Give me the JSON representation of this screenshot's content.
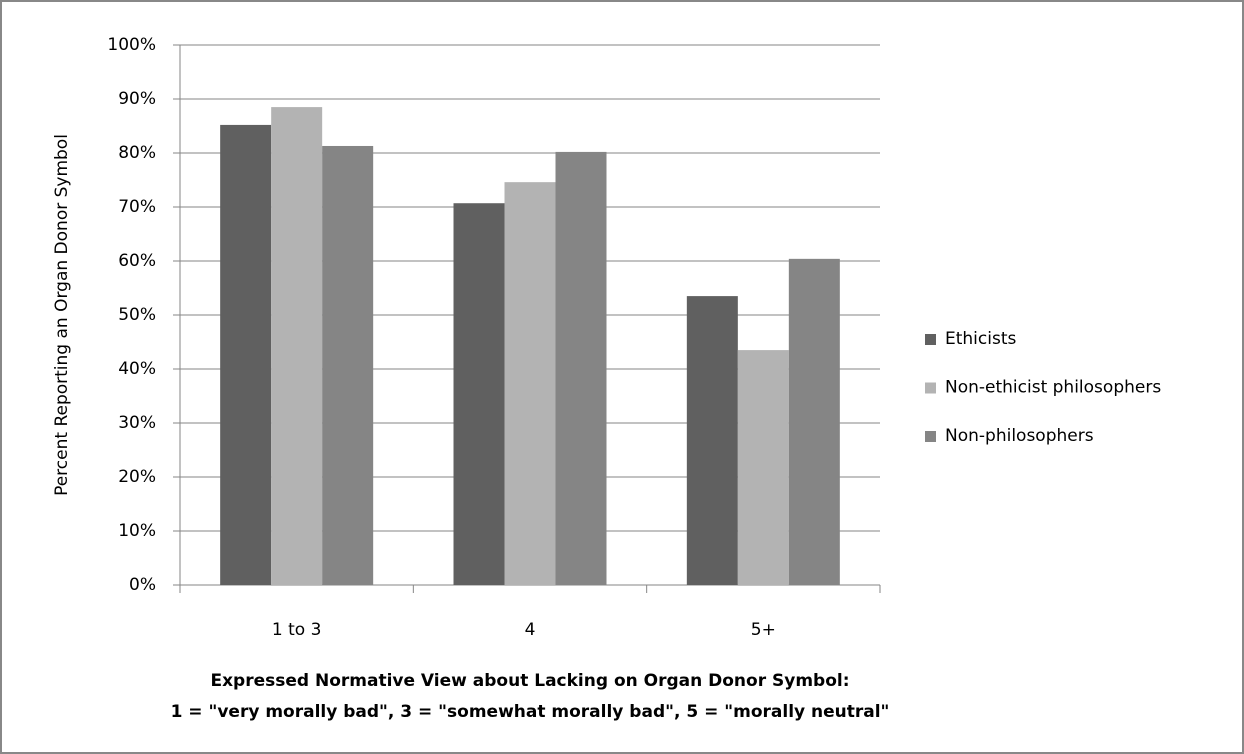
{
  "chart_data": {
    "type": "bar",
    "categories": [
      "1 to 3",
      "4",
      "5+"
    ],
    "series": [
      {
        "name": "Ethicists",
        "color": "#606060",
        "values": [
          85.2,
          70.7,
          53.5
        ]
      },
      {
        "name": "Non-ethicist philosophers",
        "color": "#b3b3b3",
        "values": [
          88.5,
          74.6,
          43.5
        ]
      },
      {
        "name": "Non-philosophers",
        "color": "#858585",
        "values": [
          81.3,
          80.2,
          60.4
        ]
      }
    ],
    "ylabel": "Percent Reporting an Organ Donor Symbol",
    "xlabel": [
      "Expressed Normative View about Lacking on Organ Donor Symbol:",
      "1 = \"very morally bad\", 3 = \"somewhat morally bad\", 5 = \"morally neutral\""
    ],
    "ylim": [
      0,
      100
    ],
    "yticks": [
      {
        "value": 0,
        "label": "0%"
      },
      {
        "value": 10,
        "label": "10%"
      },
      {
        "value": 20,
        "label": "20%"
      },
      {
        "value": 30,
        "label": "30%"
      },
      {
        "value": 40,
        "label": "40%"
      },
      {
        "value": 50,
        "label": "50%"
      },
      {
        "value": 60,
        "label": "60%"
      },
      {
        "value": 70,
        "label": "70%"
      },
      {
        "value": 80,
        "label": "80%"
      },
      {
        "value": 90,
        "label": "90%"
      },
      {
        "value": 100,
        "label": "100%"
      }
    ],
    "grid": true,
    "legend": "right"
  }
}
